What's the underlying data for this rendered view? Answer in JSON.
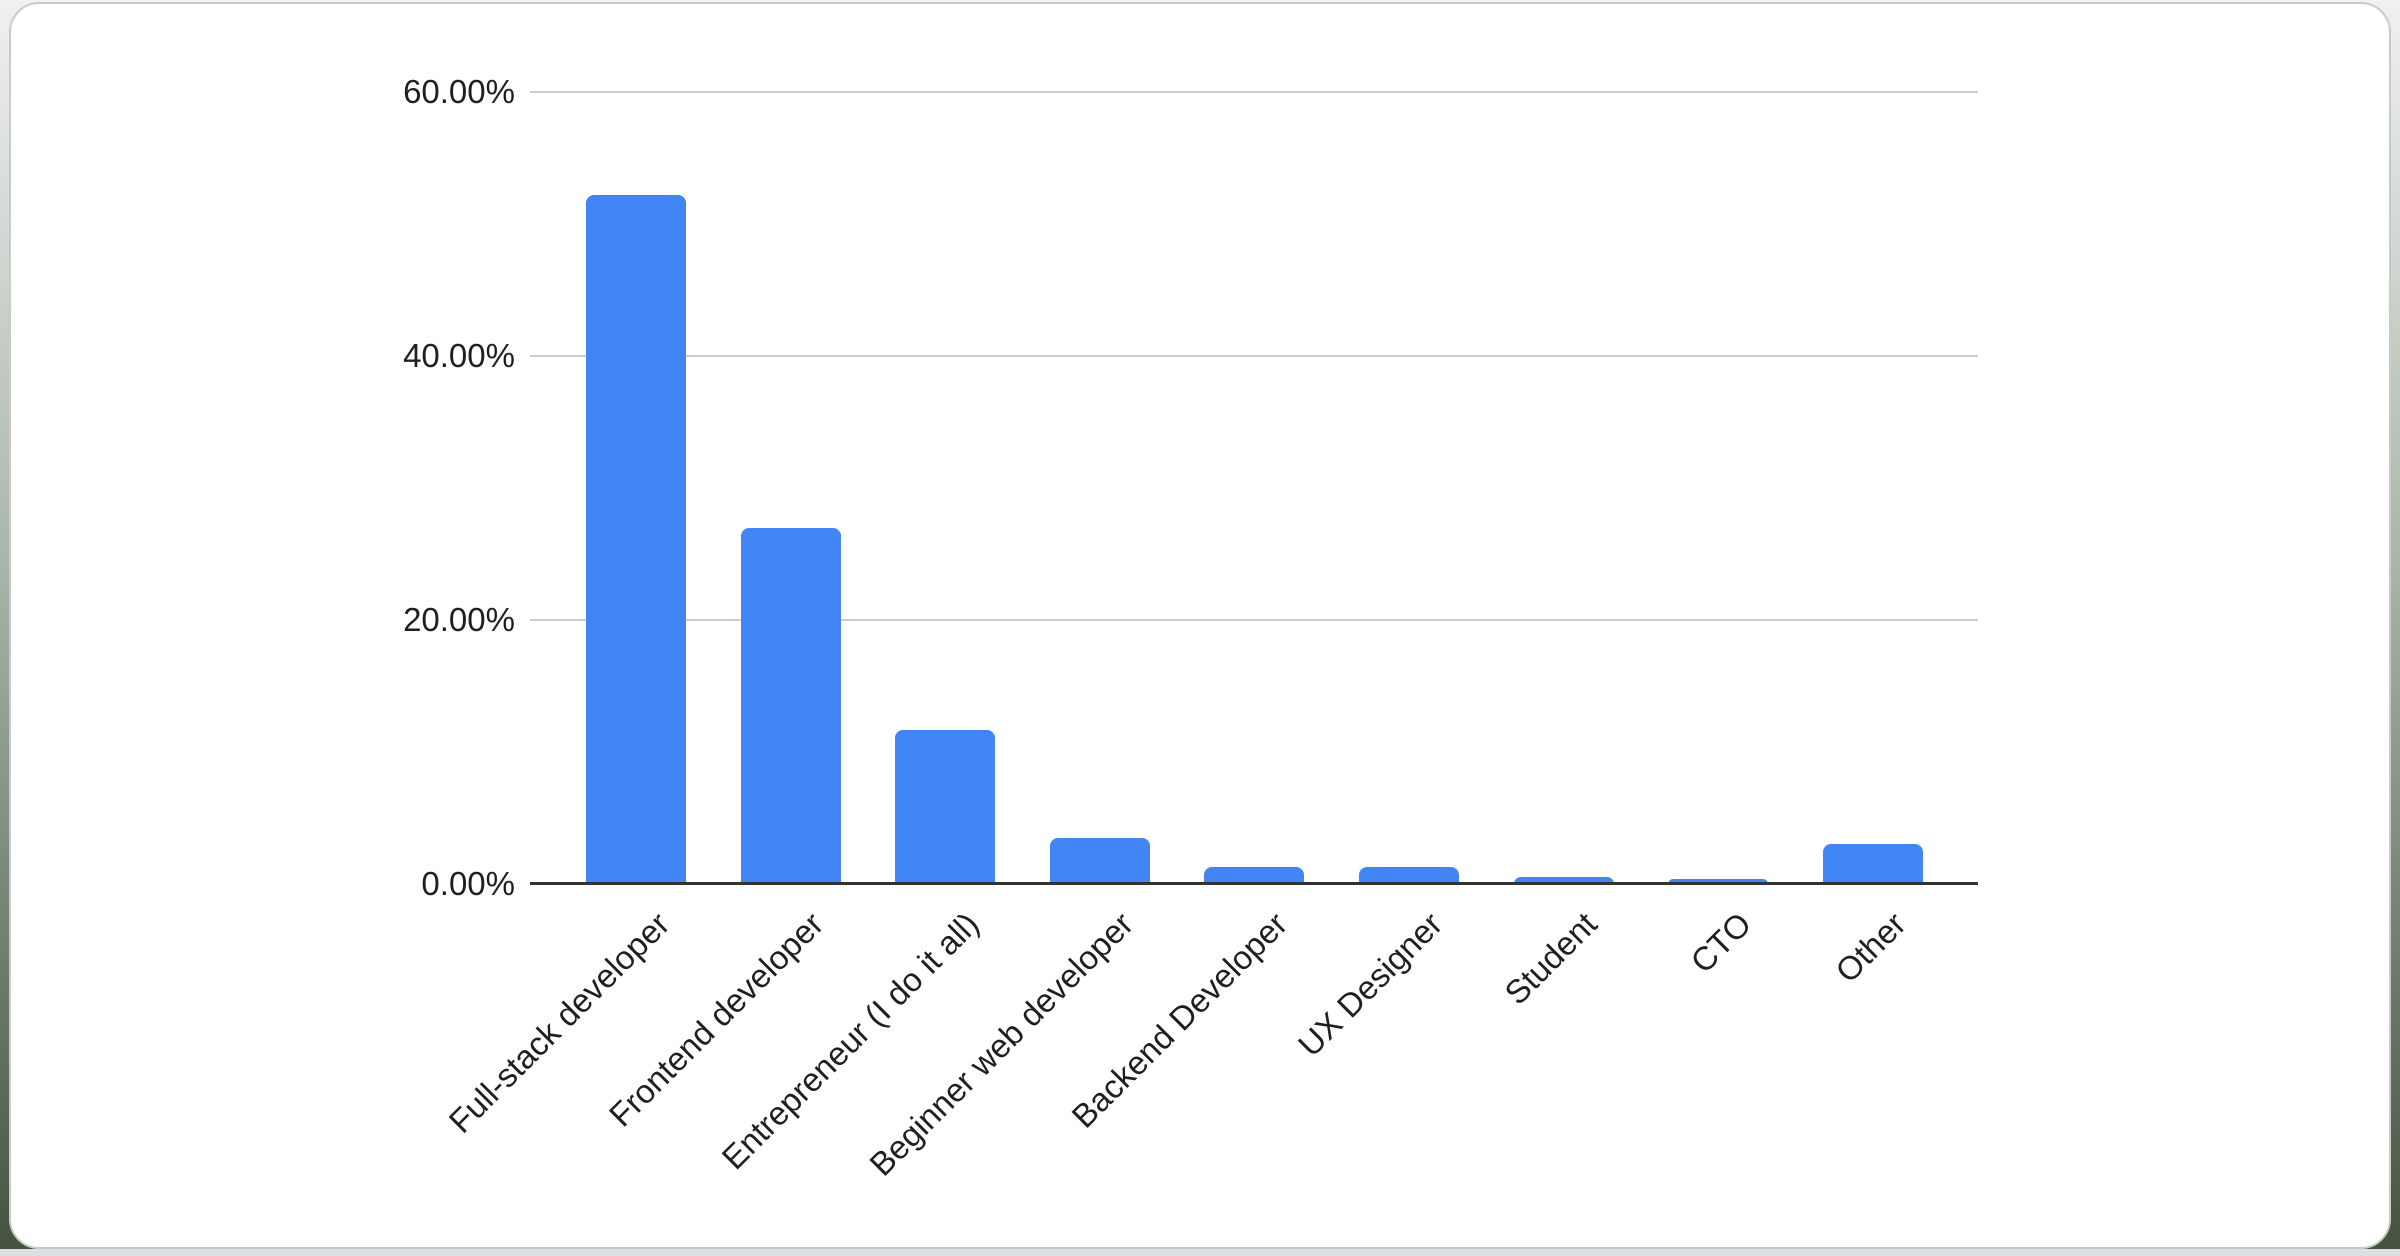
{
  "chart_data": {
    "type": "bar",
    "title": "",
    "xlabel": "",
    "ylabel": "",
    "categories": [
      "Full-stack developer",
      "Frontend developer",
      "Entrepreneur (I do it all)",
      "Beginner web developer",
      "Backend Developer",
      "UX Designer",
      "Student",
      "CTO",
      "Other"
    ],
    "values": [
      52.2,
      27.0,
      11.7,
      3.5,
      1.3,
      1.3,
      0.55,
      0.4,
      3.0
    ],
    "value_unit": "percent",
    "ylim": [
      0,
      60
    ],
    "y_tick_values": [
      0,
      20,
      40,
      60
    ],
    "y_tick_labels": [
      "0.00%",
      "20.00%",
      "40.00%",
      "60.00%"
    ],
    "grid": true,
    "legend_position": "none",
    "x_label_rotation_deg": -45,
    "colors": {
      "bar": "#4285f4",
      "gridline": "#cccccc",
      "axis_line": "#333333",
      "label_text": "#1f1f1f",
      "card_background": "#ffffff",
      "card_border": "#c6ccc7",
      "bottom_strip": "#dce0e3",
      "corner_background": "#44523f"
    }
  }
}
